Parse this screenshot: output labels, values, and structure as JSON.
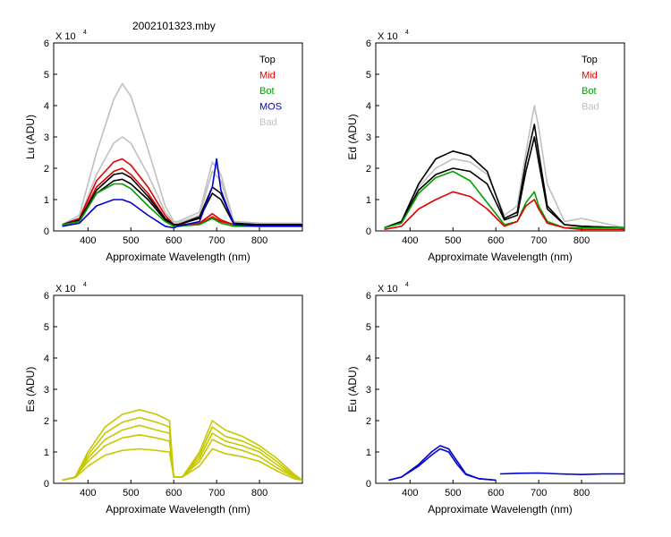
{
  "figure": {
    "title": "2002101323.mby"
  },
  "chart_data": [
    {
      "id": "lu",
      "type": "line",
      "ylabel": "Lu (ADU)",
      "xlabel": "Approximate Wavelength (nm)",
      "multiplier": "X 10",
      "exponent": "4",
      "xlim": [
        320,
        900
      ],
      "ylim": [
        0,
        6
      ],
      "xticks": [
        400,
        500,
        600,
        700,
        800
      ],
      "yticks": [
        0,
        1,
        2,
        3,
        4,
        5,
        6
      ],
      "legend_position": "top-right",
      "legend": [
        {
          "name": "Top",
          "color": "#000000"
        },
        {
          "name": "Mid",
          "color": "#e00000"
        },
        {
          "name": "Bot",
          "color": "#00a000"
        },
        {
          "name": "MOS",
          "color": "#0000d0"
        },
        {
          "name": "Bad",
          "color": "#c0c0c0"
        }
      ],
      "series": [
        {
          "name": "Bad",
          "color": "#c0c0c0",
          "x": [
            340,
            380,
            420,
            460,
            480,
            500,
            540,
            580,
            600,
            610,
            660,
            690,
            710,
            740,
            800,
            900
          ],
          "y": [
            0.2,
            0.5,
            2.5,
            4.2,
            4.7,
            4.3,
            2.6,
            0.8,
            0.3,
            0.3,
            0.6,
            2.2,
            1.8,
            0.3,
            0.25,
            0.25
          ]
        },
        {
          "name": "Bad",
          "color": "#c0c0c0",
          "x": [
            340,
            380,
            420,
            460,
            480,
            500,
            540,
            580,
            600,
            610,
            660,
            690,
            710,
            740,
            800,
            900
          ],
          "y": [
            0.2,
            0.4,
            1.8,
            2.8,
            3.0,
            2.8,
            1.8,
            0.6,
            0.25,
            0.25,
            0.5,
            1.9,
            1.6,
            0.3,
            0.25,
            0.25
          ]
        },
        {
          "name": "Mid",
          "color": "#e00000",
          "x": [
            340,
            380,
            420,
            460,
            480,
            500,
            540,
            580,
            600,
            610,
            660,
            690,
            710,
            740,
            800,
            900
          ],
          "y": [
            0.2,
            0.4,
            1.6,
            2.2,
            2.3,
            2.1,
            1.4,
            0.5,
            0.2,
            0.2,
            0.25,
            0.55,
            0.35,
            0.2,
            0.2,
            0.2
          ]
        },
        {
          "name": "Mid",
          "color": "#e00000",
          "x": [
            340,
            380,
            420,
            460,
            480,
            500,
            540,
            580,
            600,
            610,
            660,
            690,
            710,
            740,
            800,
            900
          ],
          "y": [
            0.2,
            0.35,
            1.4,
            1.9,
            2.0,
            1.8,
            1.2,
            0.4,
            0.2,
            0.2,
            0.22,
            0.45,
            0.3,
            0.2,
            0.2,
            0.2
          ]
        },
        {
          "name": "Top",
          "color": "#000000",
          "x": [
            340,
            380,
            420,
            460,
            480,
            500,
            540,
            580,
            600,
            610,
            660,
            690,
            710,
            740,
            800,
            900
          ],
          "y": [
            0.2,
            0.35,
            1.3,
            1.8,
            1.85,
            1.7,
            1.1,
            0.4,
            0.2,
            0.2,
            0.45,
            1.4,
            1.2,
            0.25,
            0.2,
            0.2
          ]
        },
        {
          "name": "Top",
          "color": "#000000",
          "x": [
            340,
            380,
            420,
            460,
            480,
            500,
            540,
            580,
            600,
            610,
            660,
            690,
            710,
            740,
            800,
            900
          ],
          "y": [
            0.2,
            0.3,
            1.2,
            1.6,
            1.65,
            1.5,
            1.0,
            0.35,
            0.2,
            0.2,
            0.4,
            1.2,
            1.0,
            0.22,
            0.2,
            0.2
          ]
        },
        {
          "name": "Bot",
          "color": "#00a000",
          "x": [
            340,
            380,
            420,
            460,
            480,
            500,
            540,
            580,
            600,
            610,
            660,
            690,
            710,
            740,
            800,
            900
          ],
          "y": [
            0.2,
            0.3,
            1.2,
            1.5,
            1.5,
            1.35,
            0.8,
            0.3,
            0.15,
            0.15,
            0.2,
            0.4,
            0.25,
            0.15,
            0.15,
            0.15
          ]
        },
        {
          "name": "MOS",
          "color": "#0000d0",
          "x": [
            340,
            380,
            420,
            460,
            480,
            500,
            540,
            580,
            600,
            610,
            660,
            690,
            700,
            710,
            740,
            800,
            900
          ],
          "y": [
            0.15,
            0.25,
            0.8,
            1.0,
            1.0,
            0.9,
            0.5,
            0.15,
            0.1,
            0.15,
            0.3,
            1.4,
            2.3,
            1.3,
            0.2,
            0.15,
            0.15
          ]
        }
      ]
    },
    {
      "id": "ed",
      "type": "line",
      "ylabel": "Ed  (ADU)",
      "xlabel": "Approximate Wavelength (nm)",
      "multiplier": "X 10",
      "exponent": "4",
      "xlim": [
        320,
        900
      ],
      "ylim": [
        0,
        6
      ],
      "xticks": [
        400,
        500,
        600,
        700,
        800
      ],
      "yticks": [
        0,
        1,
        2,
        3,
        4,
        5,
        6
      ],
      "legend_position": "top-right",
      "legend": [
        {
          "name": "Top",
          "color": "#000000"
        },
        {
          "name": "Mid",
          "color": "#e00000"
        },
        {
          "name": "Bot",
          "color": "#00a000"
        },
        {
          "name": "Bad",
          "color": "#c0c0c0"
        }
      ],
      "series": [
        {
          "name": "Bad",
          "color": "#c0c0c0",
          "x": [
            340,
            380,
            420,
            460,
            500,
            540,
            580,
            620,
            650,
            670,
            690,
            700,
            720,
            760,
            800,
            900
          ],
          "y": [
            0.1,
            0.3,
            1.4,
            2.0,
            2.3,
            2.2,
            1.8,
            0.5,
            0.8,
            2.5,
            4.0,
            3.3,
            1.5,
            0.3,
            0.4,
            0.1
          ]
        },
        {
          "name": "Top",
          "color": "#000000",
          "x": [
            340,
            380,
            420,
            460,
            500,
            540,
            580,
            620,
            650,
            670,
            690,
            700,
            720,
            760,
            800,
            900
          ],
          "y": [
            0.1,
            0.3,
            1.5,
            2.3,
            2.55,
            2.4,
            1.9,
            0.4,
            0.6,
            2.2,
            3.4,
            2.5,
            0.8,
            0.2,
            0.15,
            0.1
          ]
        },
        {
          "name": "Top",
          "color": "#000000",
          "x": [
            340,
            380,
            420,
            460,
            500,
            540,
            580,
            620,
            650,
            670,
            690,
            700,
            720,
            760,
            800,
            900
          ],
          "y": [
            0.1,
            0.3,
            1.3,
            1.8,
            2.0,
            1.9,
            1.5,
            0.35,
            0.5,
            1.9,
            3.0,
            2.2,
            0.7,
            0.2,
            0.15,
            0.1
          ]
        },
        {
          "name": "Bot",
          "color": "#00a000",
          "x": [
            340,
            380,
            420,
            460,
            500,
            540,
            580,
            620,
            650,
            670,
            690,
            700,
            720,
            760,
            800,
            900
          ],
          "y": [
            0.1,
            0.25,
            1.2,
            1.7,
            1.9,
            1.6,
            0.9,
            0.2,
            0.3,
            0.9,
            1.25,
            0.8,
            0.3,
            0.1,
            0.1,
            0.1
          ]
        },
        {
          "name": "Mid",
          "color": "#e00000",
          "x": [
            340,
            380,
            420,
            460,
            500,
            540,
            580,
            620,
            650,
            670,
            690,
            700,
            720,
            760,
            800,
            900
          ],
          "y": [
            0.05,
            0.15,
            0.7,
            1.0,
            1.25,
            1.1,
            0.7,
            0.15,
            0.3,
            0.8,
            1.0,
            0.7,
            0.25,
            0.1,
            0.05,
            0.05
          ]
        }
      ]
    },
    {
      "id": "es",
      "type": "line",
      "ylabel": "Es  (ADU)",
      "xlabel": "Approximate Wavelength (nm)",
      "multiplier": "X 10",
      "exponent": "4",
      "xlim": [
        320,
        900
      ],
      "ylim": [
        0,
        6
      ],
      "xticks": [
        400,
        500,
        600,
        700,
        800
      ],
      "yticks": [
        0,
        1,
        2,
        3,
        4,
        5,
        6
      ],
      "series": [
        {
          "name": "Es",
          "color": "#c8c800",
          "x": [
            340,
            370,
            400,
            440,
            480,
            520,
            560,
            590,
            600,
            620,
            660,
            690,
            720,
            760,
            800,
            840,
            880,
            900
          ],
          "y": [
            0.1,
            0.2,
            1.0,
            1.8,
            2.2,
            2.35,
            2.2,
            2.0,
            0.2,
            0.2,
            1.0,
            2.0,
            1.7,
            1.5,
            1.2,
            0.8,
            0.3,
            0.1
          ]
        },
        {
          "name": "Es",
          "color": "#c8c800",
          "x": [
            340,
            370,
            400,
            440,
            480,
            520,
            560,
            590,
            600,
            620,
            660,
            690,
            720,
            760,
            800,
            840,
            880,
            900
          ],
          "y": [
            0.1,
            0.2,
            0.9,
            1.6,
            1.95,
            2.1,
            1.95,
            1.8,
            0.2,
            0.2,
            0.9,
            1.8,
            1.5,
            1.35,
            1.1,
            0.7,
            0.25,
            0.1
          ]
        },
        {
          "name": "Es",
          "color": "#c8c800",
          "x": [
            340,
            370,
            400,
            440,
            480,
            520,
            560,
            590,
            600,
            620,
            660,
            690,
            720,
            760,
            800,
            840,
            880,
            900
          ],
          "y": [
            0.1,
            0.2,
            0.8,
            1.4,
            1.7,
            1.85,
            1.7,
            1.6,
            0.2,
            0.2,
            0.8,
            1.6,
            1.35,
            1.2,
            1.0,
            0.6,
            0.22,
            0.1
          ]
        },
        {
          "name": "Es",
          "color": "#c8c800",
          "x": [
            340,
            370,
            400,
            440,
            480,
            520,
            560,
            590,
            600,
            620,
            660,
            690,
            720,
            760,
            800,
            840,
            880,
            900
          ],
          "y": [
            0.1,
            0.2,
            0.7,
            1.2,
            1.45,
            1.55,
            1.45,
            1.35,
            0.2,
            0.2,
            0.7,
            1.4,
            1.2,
            1.05,
            0.85,
            0.5,
            0.2,
            0.1
          ]
        },
        {
          "name": "Es",
          "color": "#c8c800",
          "x": [
            340,
            370,
            400,
            440,
            480,
            520,
            560,
            590,
            600,
            620,
            660,
            690,
            720,
            760,
            800,
            840,
            880,
            900
          ],
          "y": [
            0.1,
            0.18,
            0.55,
            0.9,
            1.05,
            1.1,
            1.05,
            1.0,
            0.2,
            0.2,
            0.55,
            1.1,
            0.95,
            0.85,
            0.7,
            0.4,
            0.15,
            0.1
          ]
        }
      ]
    },
    {
      "id": "eu",
      "type": "line",
      "ylabel": "Eu  (ADU)",
      "xlabel": "Approximate Wavelength (nm)",
      "multiplier": "X 10",
      "exponent": "4",
      "xlim": [
        320,
        900
      ],
      "ylim": [
        0,
        6
      ],
      "xticks": [
        400,
        500,
        600,
        700,
        800
      ],
      "yticks": [
        0,
        1,
        2,
        3,
        4,
        5,
        6
      ],
      "series": [
        {
          "name": "Eu",
          "color": "#0000d0",
          "x": [
            350,
            380,
            420,
            450,
            470,
            490,
            510,
            530,
            560,
            600
          ],
          "y": [
            0.1,
            0.2,
            0.6,
            1.0,
            1.2,
            1.1,
            0.7,
            0.3,
            0.15,
            0.1
          ]
        },
        {
          "name": "Eu",
          "color": "#0000d0",
          "x": [
            350,
            380,
            420,
            450,
            470,
            490,
            510,
            530,
            560,
            600
          ],
          "y": [
            0.1,
            0.2,
            0.55,
            0.9,
            1.1,
            1.0,
            0.6,
            0.28,
            0.15,
            0.1
          ]
        },
        {
          "name": "Eu",
          "color": "#0000d0",
          "x": [
            610,
            650,
            700,
            750,
            800,
            850,
            900
          ],
          "y": [
            0.3,
            0.32,
            0.33,
            0.3,
            0.28,
            0.3,
            0.3
          ]
        }
      ]
    }
  ]
}
